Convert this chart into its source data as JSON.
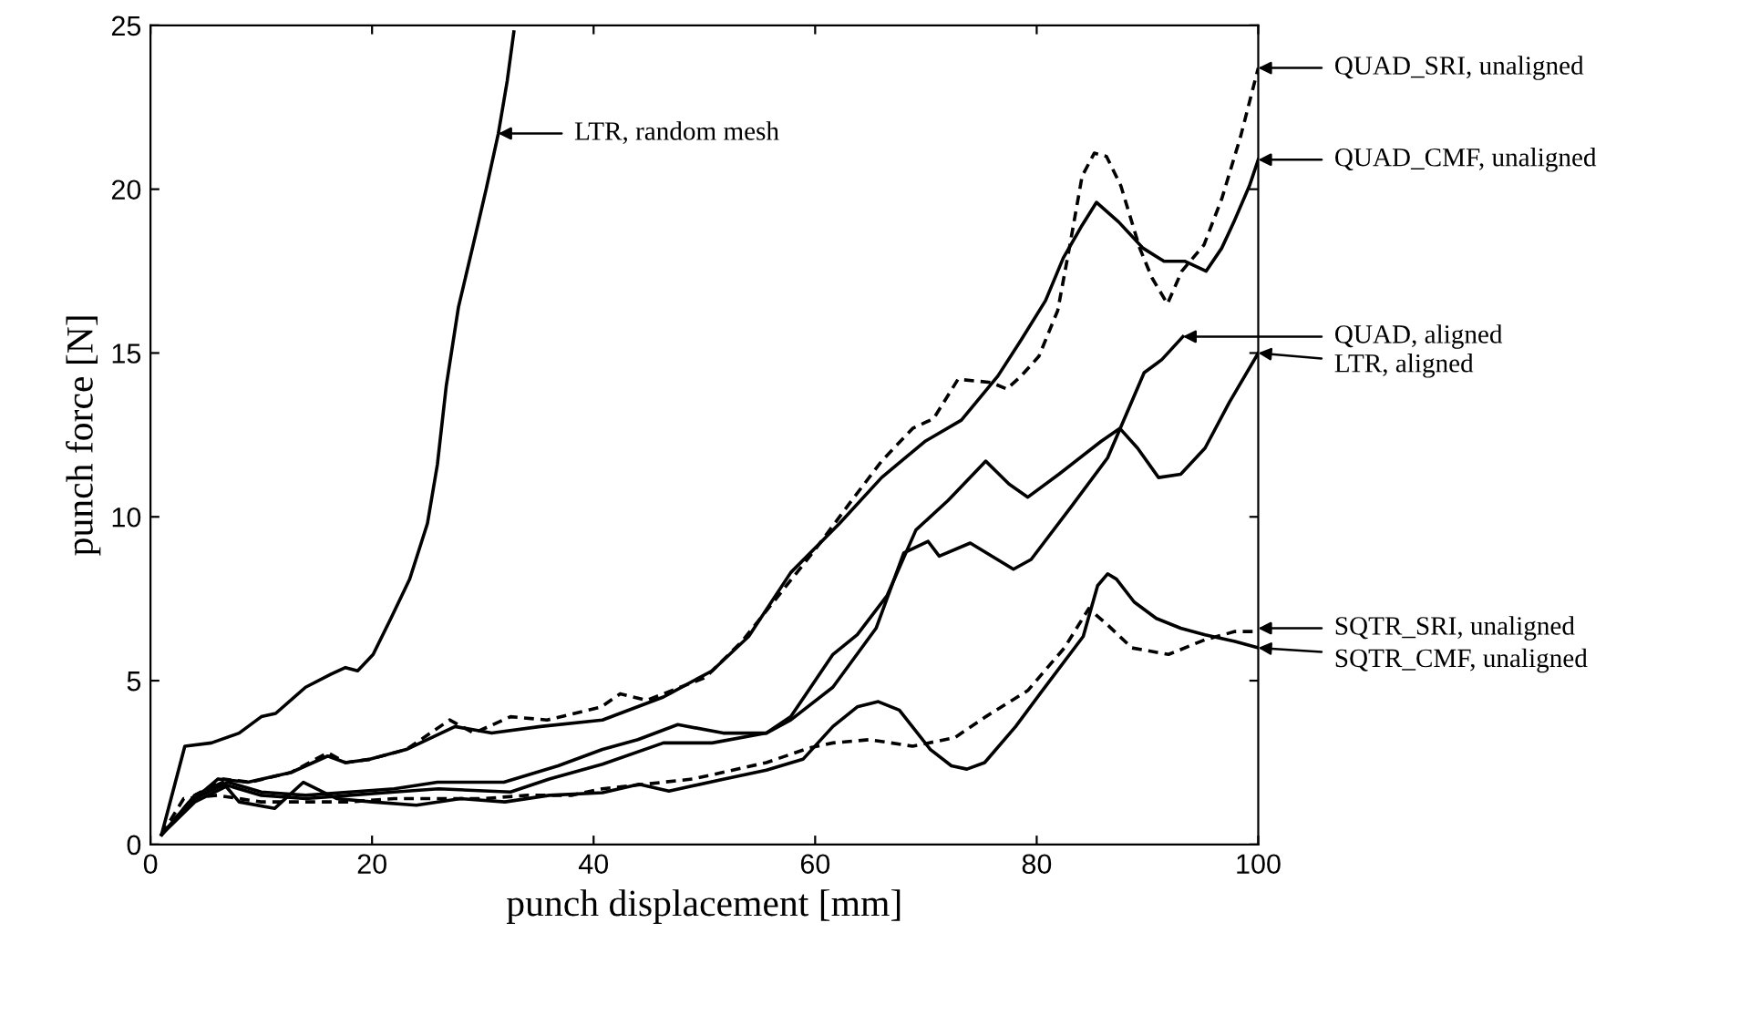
{
  "chart_data": {
    "type": "line",
    "xlabel": "punch displacement [mm]",
    "ylabel": "punch force [N]",
    "xlim": [
      0,
      100
    ],
    "ylim": [
      0,
      25
    ],
    "xticks": [
      0,
      20,
      40,
      60,
      80,
      100
    ],
    "yticks": [
      0,
      5,
      10,
      15,
      20,
      25
    ],
    "grid": false,
    "legend": false,
    "marker": "none",
    "series": [
      {
        "color": "#000000",
        "line_style": "solid",
        "x": [
          1,
          3.1,
          5.5,
          8,
          10,
          11.3,
          14,
          16.3,
          17.6,
          18.7,
          20.1,
          21.7,
          23.4,
          25,
          25.9,
          26.7,
          27.8,
          29.2,
          30.3,
          31.4,
          32.2,
          32.8
        ],
        "values": [
          0.3,
          3.0,
          3.1,
          3.4,
          3.9,
          4.0,
          4.8,
          5.2,
          5.4,
          5.3,
          5.8,
          6.9,
          8.1,
          9.8,
          11.6,
          14.0,
          16.4,
          18.4,
          20.0,
          21.7,
          23.3,
          24.8
        ]
      },
      {
        "color": "#000000",
        "line_style": "dashed",
        "x": [
          1,
          4,
          6.6,
          9,
          12.7,
          16,
          17.6,
          19.8,
          23.1,
          27,
          29.2,
          32.5,
          35.8,
          40.7,
          42.4,
          44.8,
          50.1,
          53.4,
          56.7,
          60,
          63.3,
          66,
          68.8,
          70.7,
          72.9,
          75.9,
          77.3,
          78.6,
          80.2,
          81.9,
          83,
          84.1,
          85.2,
          86.3,
          87.6,
          89.3,
          90.4,
          91.8,
          93.1,
          95.1,
          96.7,
          98.4,
          100
        ],
        "values": [
          0.3,
          1.5,
          2.0,
          1.9,
          2.2,
          2.8,
          2.5,
          2.6,
          2.9,
          3.8,
          3.4,
          3.9,
          3.8,
          4.2,
          4.6,
          4.4,
          5.1,
          6.2,
          7.6,
          9.0,
          10.5,
          11.7,
          12.7,
          13.0,
          14.2,
          14.1,
          13.9,
          14.3,
          14.9,
          16.3,
          18.3,
          20.4,
          21.1,
          21.0,
          20.1,
          18.2,
          17.3,
          16.5,
          17.5,
          18.3,
          19.7,
          21.6,
          23.7
        ]
      },
      {
        "color": "#000000",
        "line_style": "solid",
        "x": [
          1,
          4,
          6.1,
          8.8,
          12.7,
          16,
          17.6,
          19.8,
          23.1,
          27.5,
          30.8,
          35.2,
          40.8,
          46.3,
          50.7,
          54,
          57.8,
          62.2,
          66,
          69.9,
          73.2,
          76.5,
          78.6,
          80.8,
          82.4,
          84.1,
          85.4,
          87.4,
          89.6,
          91.5,
          93.4,
          95.3,
          96.7,
          97.8,
          99.2,
          100
        ],
        "values": [
          0.3,
          1.4,
          2.0,
          1.9,
          2.2,
          2.7,
          2.5,
          2.6,
          2.9,
          3.6,
          3.4,
          3.6,
          3.8,
          4.5,
          5.3,
          6.35,
          8.3,
          9.8,
          11.2,
          12.3,
          12.95,
          14.3,
          15.4,
          16.6,
          17.9,
          18.9,
          19.6,
          19.0,
          18.2,
          17.8,
          17.8,
          17.5,
          18.2,
          19.0,
          20.1,
          20.9
        ]
      },
      {
        "color": "#000000",
        "line_style": "solid",
        "x": [
          1,
          4,
          7,
          10,
          14,
          18,
          22,
          25.9,
          31.9,
          36.8,
          40.8,
          44,
          47.6,
          51.7,
          55.6,
          57.8,
          61.6,
          65.5,
          68,
          70.2,
          71.2,
          74,
          77.9,
          79.5,
          83.1,
          86.4,
          89.7,
          91.3,
          93.2
        ],
        "values": [
          0.3,
          1.4,
          1.9,
          1.6,
          1.5,
          1.6,
          1.7,
          1.9,
          1.9,
          2.4,
          2.9,
          3.2,
          3.66,
          3.4,
          3.4,
          3.8,
          4.8,
          6.6,
          8.9,
          9.25,
          8.8,
          9.2,
          8.4,
          8.7,
          10.3,
          11.8,
          14.4,
          14.8,
          15.5
        ]
      },
      {
        "color": "#000000",
        "line_style": "solid",
        "x": [
          1,
          4,
          7,
          10,
          14,
          18,
          22,
          26,
          32.5,
          36,
          40.8,
          46.3,
          50.7,
          55.6,
          57.8,
          61.6,
          63.8,
          66.5,
          69.1,
          72,
          75.4,
          77.5,
          79.2,
          82,
          85.8,
          87.5,
          89.1,
          91,
          93,
          95.2,
          97.4,
          100
        ],
        "values": [
          0.3,
          1.3,
          1.8,
          1.5,
          1.4,
          1.5,
          1.6,
          1.7,
          1.6,
          2.0,
          2.45,
          3.1,
          3.1,
          3.4,
          3.9,
          5.8,
          6.4,
          7.6,
          9.6,
          10.5,
          11.7,
          11.0,
          10.6,
          11.3,
          12.3,
          12.7,
          12.1,
          11.2,
          11.3,
          12.1,
          13.5,
          15.0
        ]
      },
      {
        "color": "#000000",
        "line_style": "dashed",
        "x": [
          1,
          3,
          6,
          10,
          14,
          18,
          22,
          26,
          30,
          34,
          38,
          40.8,
          49,
          55.6,
          59.5,
          61.6,
          64.9,
          68.8,
          72.6,
          75.4,
          79.2,
          82.5,
          84.7,
          86.4,
          88.6,
          91.9,
          95.2,
          97.9,
          100
        ],
        "values": [
          0.3,
          1.4,
          1.5,
          1.3,
          1.3,
          1.3,
          1.4,
          1.4,
          1.4,
          1.5,
          1.5,
          1.7,
          2.0,
          2.5,
          2.95,
          3.1,
          3.2,
          3.0,
          3.26,
          3.9,
          4.7,
          6.0,
          7.2,
          6.7,
          6.0,
          5.8,
          6.25,
          6.5,
          6.5
        ]
      },
      {
        "color": "#000000",
        "line_style": "solid",
        "x": [
          1,
          4,
          6.5,
          8,
          11.2,
          13.8,
          16.8,
          20,
          24,
          28,
          32,
          36,
          40.8,
          44.1,
          46.8,
          51.8,
          55.6,
          58.9,
          61.6,
          63.8,
          65.7,
          67.6,
          70.4,
          72.3,
          73.7,
          75.3,
          78.1,
          80.3,
          84.2,
          85.5,
          86.4,
          87.2,
          88.8,
          90.8,
          93,
          95.2,
          97.9,
          100
        ],
        "values": [
          0.3,
          1.5,
          1.9,
          1.3,
          1.1,
          1.9,
          1.4,
          1.3,
          1.2,
          1.4,
          1.3,
          1.5,
          1.58,
          1.84,
          1.63,
          2.0,
          2.27,
          2.6,
          3.6,
          4.2,
          4.36,
          4.1,
          2.9,
          2.4,
          2.3,
          2.5,
          3.6,
          4.6,
          6.35,
          7.9,
          8.26,
          8.1,
          7.4,
          6.9,
          6.6,
          6.4,
          6.2,
          6.0
        ]
      }
    ],
    "annotations": [
      {
        "text": "LTR, random mesh",
        "x": 31.4,
        "y": 21.7
      },
      {
        "text": "QUAD_SRI, unaligned",
        "x": 100,
        "y": 23.7
      },
      {
        "text": "QUAD_CMF, unaligned",
        "x": 100,
        "y": 20.9
      },
      {
        "text": "QUAD, aligned",
        "x": 93.2,
        "y": 15.5
      },
      {
        "text": "LTR, aligned",
        "x": 100,
        "y": 15.0
      },
      {
        "text": "SQTR_SRI, unaligned",
        "x": 100,
        "y": 6.6
      },
      {
        "text": "SQTR_CMF, unaligned",
        "x": 100,
        "y": 6.0
      }
    ]
  }
}
